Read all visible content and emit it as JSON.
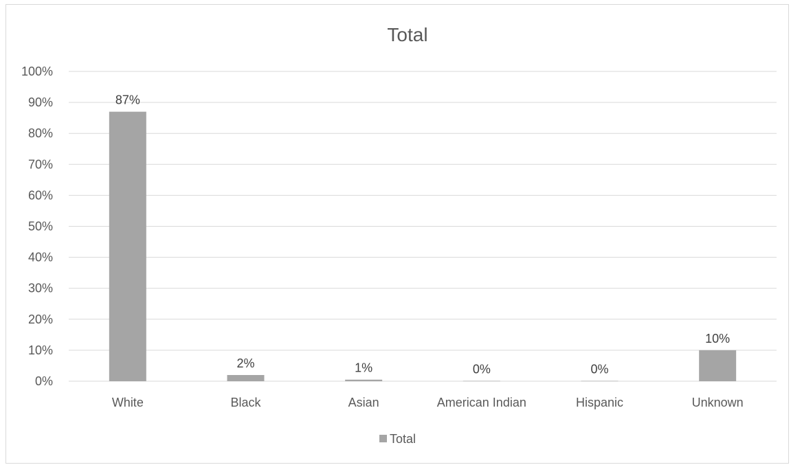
{
  "chart_data": {
    "type": "bar",
    "title": "Total",
    "categories": [
      "White",
      "Black",
      "Asian",
      "American Indian",
      "Hispanic",
      "Unknown"
    ],
    "series": [
      {
        "name": "Total",
        "values": [
          87,
          2,
          0.5,
          0.1,
          0.1,
          10
        ],
        "data_labels": [
          "87%",
          "2%",
          "1%",
          "0%",
          "0%",
          "10%"
        ],
        "color": "#a5a5a5"
      }
    ],
    "yticks": [
      "0%",
      "10%",
      "20%",
      "30%",
      "40%",
      "50%",
      "60%",
      "70%",
      "80%",
      "90%",
      "100%"
    ],
    "ylim": [
      0,
      100
    ],
    "grid": true,
    "legend_position": "bottom",
    "gridline_color": "#d9d9d9"
  }
}
